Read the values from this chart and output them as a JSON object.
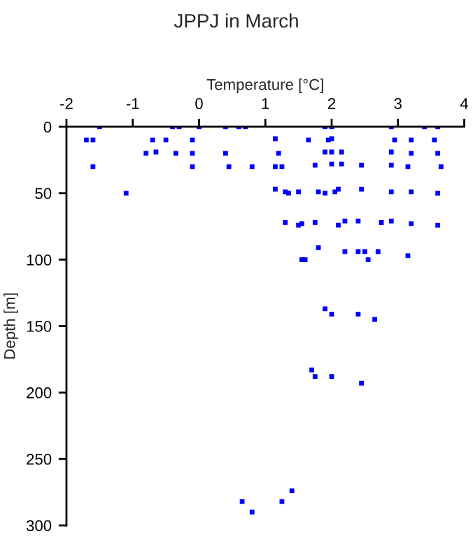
{
  "chart_data": {
    "type": "scatter",
    "title": "JPPJ in March",
    "xlabel": "Temperature [°C]",
    "ylabel": "Depth [m]",
    "xlim": [
      -2,
      4
    ],
    "xticks": [
      -2,
      -1,
      0,
      1,
      2,
      3,
      4
    ],
    "ylim": [
      300,
      0
    ],
    "yticks": [
      0,
      50,
      100,
      150,
      200,
      250,
      300
    ],
    "grid": false,
    "marker": "square",
    "series": [
      {
        "color": "#0000ff",
        "x": [
          -1.5,
          -0.4,
          -0.3,
          0.0,
          0.4,
          0.6,
          0.7,
          1.9,
          2.0,
          2.9,
          3.4,
          3.6,
          -1.7,
          -1.6,
          -0.7,
          -0.5,
          -0.1,
          1.15,
          1.65,
          1.95,
          2.0,
          2.95,
          3.2,
          3.55,
          -0.8,
          -0.65,
          -0.35,
          -0.1,
          0.4,
          1.2,
          1.9,
          2.0,
          2.15,
          2.9,
          3.2,
          3.6,
          -1.6,
          -0.1,
          0.45,
          0.8,
          1.15,
          1.25,
          1.75,
          2.0,
          2.15,
          2.45,
          2.9,
          3.15,
          3.65,
          -1.1,
          1.15,
          1.3,
          1.35,
          1.5,
          1.8,
          1.9,
          2.05,
          2.1,
          2.45,
          2.9,
          3.2,
          3.6,
          1.3,
          1.5,
          1.55,
          1.75,
          2.1,
          2.2,
          2.4,
          2.75,
          2.9,
          3.2,
          3.6,
          1.8,
          2.2,
          2.4,
          2.5,
          2.7,
          1.55,
          1.6,
          2.55,
          3.15,
          1.9,
          2.0,
          2.4,
          2.65,
          1.7,
          1.75,
          2.0,
          2.45,
          1.4,
          0.65,
          1.25,
          0.8
        ],
        "values": [
          0,
          0,
          0,
          0,
          0,
          0,
          0,
          0,
          0,
          0,
          0,
          0,
          10,
          10,
          10,
          10,
          10,
          9,
          10,
          10,
          9,
          10,
          10,
          10,
          20,
          19,
          20,
          20,
          20,
          20,
          19,
          19,
          19,
          19,
          20,
          20,
          30,
          30,
          30,
          30,
          30,
          30,
          29,
          28,
          28,
          29,
          29,
          30,
          30,
          50,
          47,
          49,
          50,
          49,
          49,
          50,
          49,
          47,
          47,
          49,
          49,
          50,
          72,
          74,
          73,
          72,
          74,
          71,
          71,
          72,
          71,
          73,
          74,
          91,
          94,
          94,
          94,
          94,
          100,
          100,
          100,
          97,
          137,
          141,
          141,
          145,
          183,
          188,
          188,
          193,
          274,
          282,
          282,
          290
        ]
      }
    ]
  }
}
